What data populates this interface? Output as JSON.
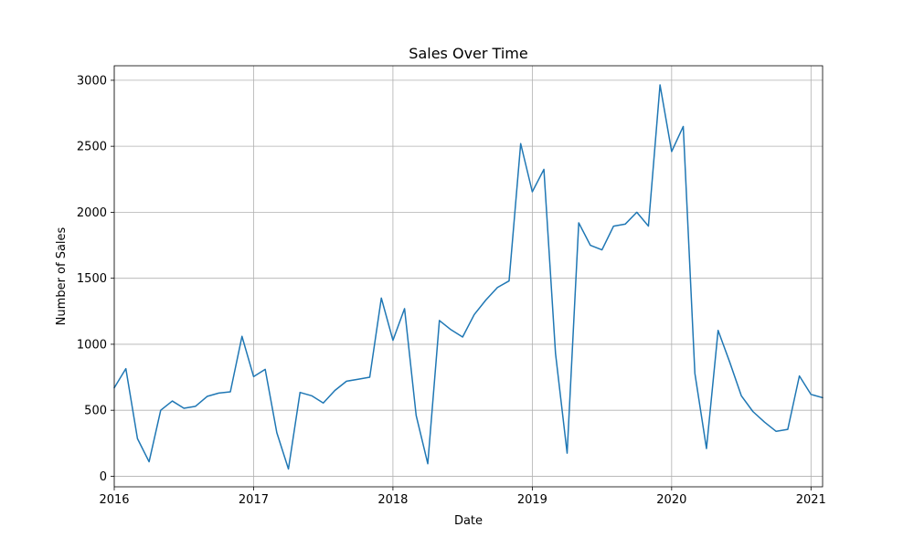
{
  "chart_data": {
    "type": "line",
    "title": "Sales Over Time",
    "xlabel": "Date",
    "ylabel": "Number of Sales",
    "xlim": [
      "2016-01",
      "2021-02"
    ],
    "ylim": [
      -80,
      3110
    ],
    "x_ticks": [
      "2016-01",
      "2017-01",
      "2018-01",
      "2019-01",
      "2020-01",
      "2021-01"
    ],
    "x_tick_labels": [
      "2016",
      "2017",
      "2018",
      "2019",
      "2020",
      "2021"
    ],
    "y_ticks": [
      0,
      500,
      1000,
      1500,
      2000,
      2500,
      3000
    ],
    "y_tick_labels": [
      "0",
      "500",
      "1000",
      "1500",
      "2000",
      "2500",
      "3000"
    ],
    "grid": true,
    "color": "#1f77b4",
    "series": [
      {
        "x": [
          "2016-01",
          "2016-02",
          "2016-03",
          "2016-04",
          "2016-05",
          "2016-06",
          "2016-07",
          "2016-08",
          "2016-09",
          "2016-10",
          "2016-11",
          "2016-12",
          "2017-01",
          "2017-02",
          "2017-03",
          "2017-04",
          "2017-05",
          "2017-06",
          "2017-07",
          "2017-08",
          "2017-09",
          "2017-10",
          "2017-11",
          "2017-12",
          "2018-01",
          "2018-02",
          "2018-03",
          "2018-04",
          "2018-05",
          "2018-06",
          "2018-07",
          "2018-08",
          "2018-09",
          "2018-10",
          "2018-11",
          "2018-12",
          "2019-01",
          "2019-02",
          "2019-03",
          "2019-04",
          "2019-05",
          "2019-06",
          "2019-07",
          "2019-08",
          "2019-09",
          "2019-10",
          "2019-11",
          "2019-12",
          "2020-01",
          "2020-02",
          "2020-03",
          "2020-04",
          "2020-05",
          "2020-06",
          "2020-07",
          "2020-08",
          "2020-09",
          "2020-10",
          "2020-11",
          "2020-12",
          "2021-01",
          "2021-02"
        ],
        "values": [
          670,
          815,
          285,
          110,
          500,
          570,
          515,
          530,
          605,
          630,
          640,
          1060,
          755,
          810,
          330,
          55,
          635,
          610,
          555,
          650,
          720,
          735,
          750,
          1350,
          1030,
          1270,
          460,
          95,
          1180,
          1110,
          1055,
          1225,
          1335,
          1430,
          1480,
          2520,
          2155,
          2325,
          930,
          175,
          1920,
          1750,
          1715,
          1895,
          1910,
          2000,
          1895,
          2965,
          2460,
          2650,
          780,
          210,
          1105,
          865,
          610,
          490,
          410,
          340,
          355,
          760,
          620,
          595
        ]
      }
    ]
  }
}
